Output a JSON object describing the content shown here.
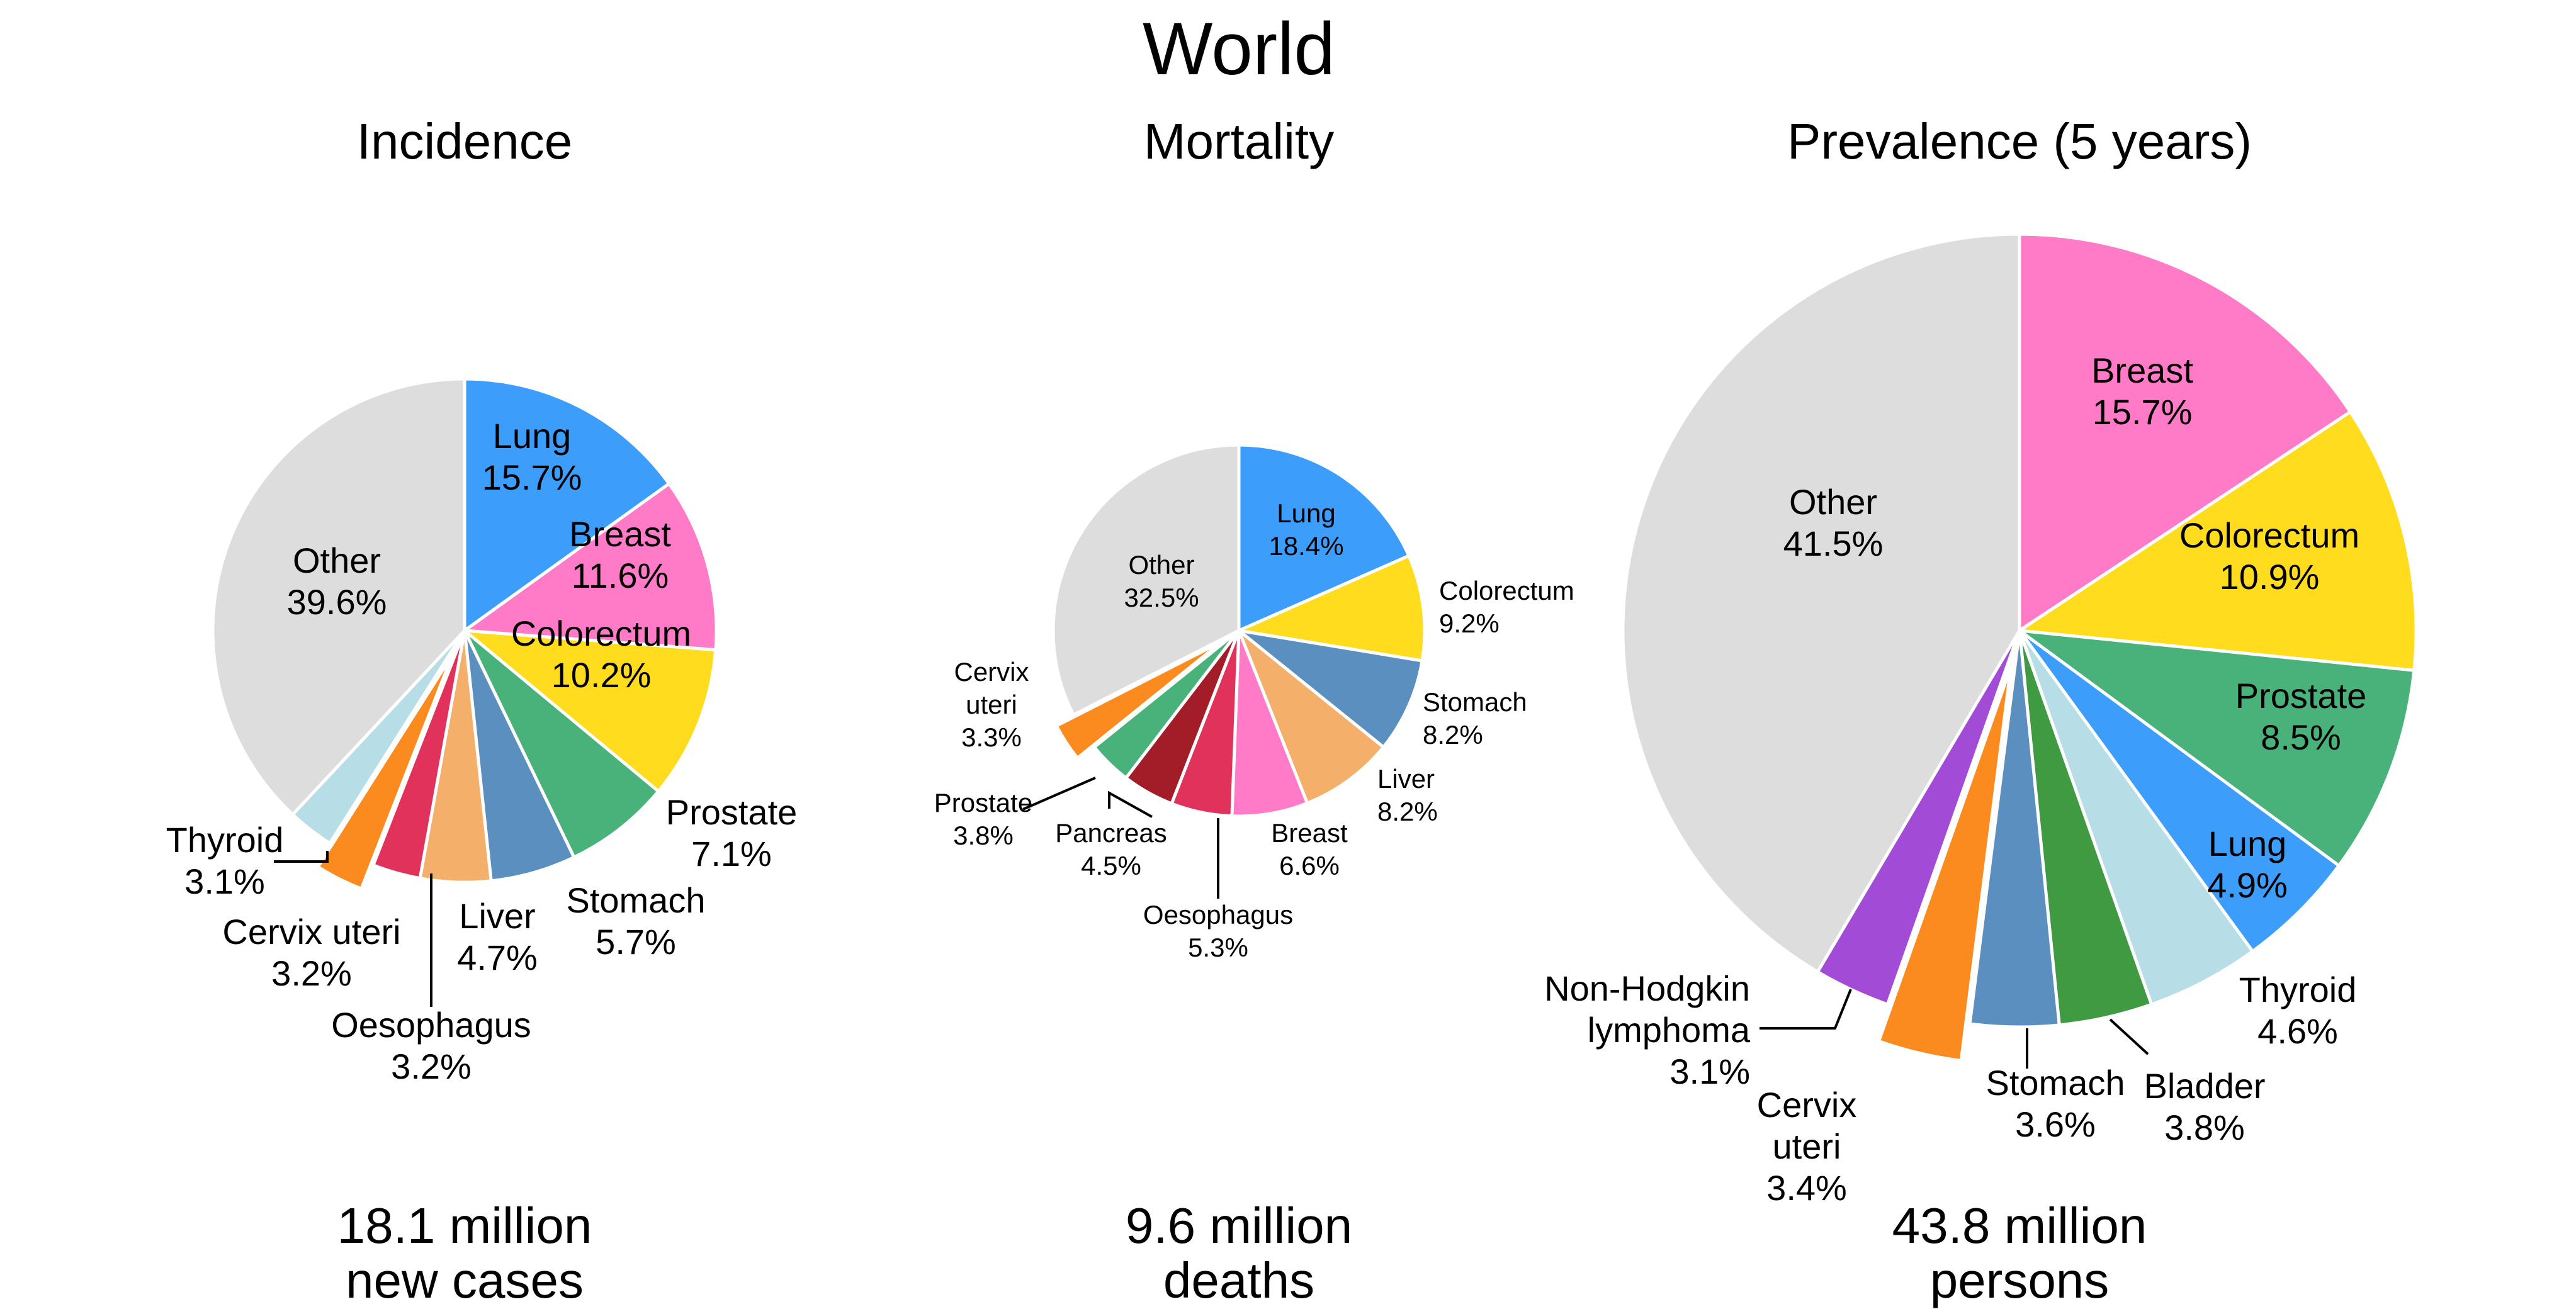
{
  "title": "World",
  "chart_data": [
    {
      "type": "pie",
      "title": "Incidence",
      "footer": [
        "18.1 million",
        "new cases"
      ],
      "start_angle": 0,
      "slices": [
        {
          "name": "Lung",
          "value": 15.7,
          "value_label": "15.7%",
          "color": "#3c9dfb"
        },
        {
          "name": "Breast",
          "value": 11.6,
          "value_label": "11.6%",
          "color": "#ff7bc7"
        },
        {
          "name": "Colorectum",
          "value": 10.2,
          "value_label": "10.2%",
          "color": "#ffdc1e"
        },
        {
          "name": "Prostate",
          "value": 7.1,
          "value_label": "7.1%",
          "color": "#48b27a"
        },
        {
          "name": "Stomach",
          "value": 5.7,
          "value_label": "5.7%",
          "color": "#5b8fbf"
        },
        {
          "name": "Liver",
          "value": 4.7,
          "value_label": "4.7%",
          "color": "#f4b06b"
        },
        {
          "name": "Oesophagus",
          "value": 3.2,
          "value_label": "3.2%",
          "color": "#e0325b"
        },
        {
          "name": "Cervix uteri",
          "value": 3.2,
          "value_label": "3.2%",
          "color": "#fb8a1f",
          "exploded": true
        },
        {
          "name": "Thyroid",
          "value": 3.1,
          "value_label": "3.1%",
          "color": "#b7dde6"
        },
        {
          "name": "Other",
          "value": 39.6,
          "value_label": "39.6%",
          "color": "#dddddd"
        }
      ]
    },
    {
      "type": "pie",
      "title": "Mortality",
      "footer": [
        "9.6 million",
        "deaths"
      ],
      "start_angle": 0,
      "slices": [
        {
          "name": "Lung",
          "value": 18.4,
          "value_label": "18.4%",
          "color": "#3c9dfb"
        },
        {
          "name": "Colorectum",
          "value": 9.2,
          "value_label": "9.2%",
          "color": "#ffdc1e"
        },
        {
          "name": "Stomach",
          "value": 8.2,
          "value_label": "8.2%",
          "color": "#5b8fbf"
        },
        {
          "name": "Liver",
          "value": 8.2,
          "value_label": "8.2%",
          "color": "#f4b06b"
        },
        {
          "name": "Breast",
          "value": 6.6,
          "value_label": "6.6%",
          "color": "#ff7bc7"
        },
        {
          "name": "Oesophagus",
          "value": 5.3,
          "value_label": "5.3%",
          "color": "#e0325b"
        },
        {
          "name": "Pancreas",
          "value": 4.5,
          "value_label": "4.5%",
          "color": "#a31d28"
        },
        {
          "name": "Prostate",
          "value": 3.8,
          "value_label": "3.8%",
          "color": "#48b27a"
        },
        {
          "name": "Cervix uteri",
          "value": 3.3,
          "value_label": "3.3%",
          "color": "#fb8a1f",
          "exploded": true
        },
        {
          "name": "Other",
          "value": 32.5,
          "value_label": "32.5%",
          "color": "#dddddd"
        }
      ]
    },
    {
      "type": "pie",
      "title": "Prevalence (5 years)",
      "footer": [
        "43.8 million",
        "persons"
      ],
      "start_angle": 0,
      "slices": [
        {
          "name": "Breast",
          "value": 15.7,
          "value_label": "15.7%",
          "color": "#ff7bc7"
        },
        {
          "name": "Colorectum",
          "value": 10.9,
          "value_label": "10.9%",
          "color": "#ffdc1e"
        },
        {
          "name": "Prostate",
          "value": 8.5,
          "value_label": "8.5%",
          "color": "#48b27a"
        },
        {
          "name": "Lung",
          "value": 4.9,
          "value_label": "4.9%",
          "color": "#3c9dfb"
        },
        {
          "name": "Thyroid",
          "value": 4.6,
          "value_label": "4.6%",
          "color": "#b7dde6"
        },
        {
          "name": "Bladder",
          "value": 3.8,
          "value_label": "3.8%",
          "color": "#3f9a42"
        },
        {
          "name": "Stomach",
          "value": 3.6,
          "value_label": "3.6%",
          "color": "#5b8fbf"
        },
        {
          "name": "Cervix uteri",
          "value": 3.4,
          "value_label": "3.4%",
          "color": "#fb8a1f",
          "exploded": true
        },
        {
          "name": "Non-Hodgkin lymphoma",
          "value": 3.1,
          "value_label": "3.1%",
          "color": "#a24bd6"
        },
        {
          "name": "Other",
          "value": 41.5,
          "value_label": "41.5%",
          "color": "#dddddd"
        }
      ]
    }
  ]
}
